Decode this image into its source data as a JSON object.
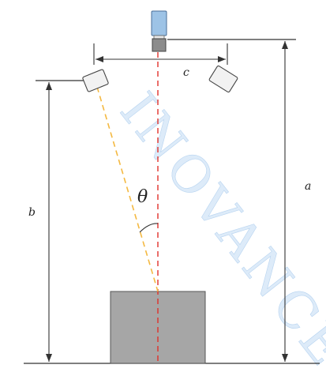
{
  "labels": {
    "a": "a",
    "b": "b",
    "c": "c",
    "theta": "θ"
  },
  "watermark": {
    "text": "INOVANCE",
    "color": "#cfe2f6"
  },
  "colors": {
    "line": "#333333",
    "center_line": "#e0302a",
    "sight_line": "#f4b942",
    "object_fill": "#a6a6a6",
    "object_stroke": "#555555",
    "camera_body": "#9dc3e6",
    "camera_lens": "#8c8c8c",
    "light_fill": "#f2f2f2"
  }
}
